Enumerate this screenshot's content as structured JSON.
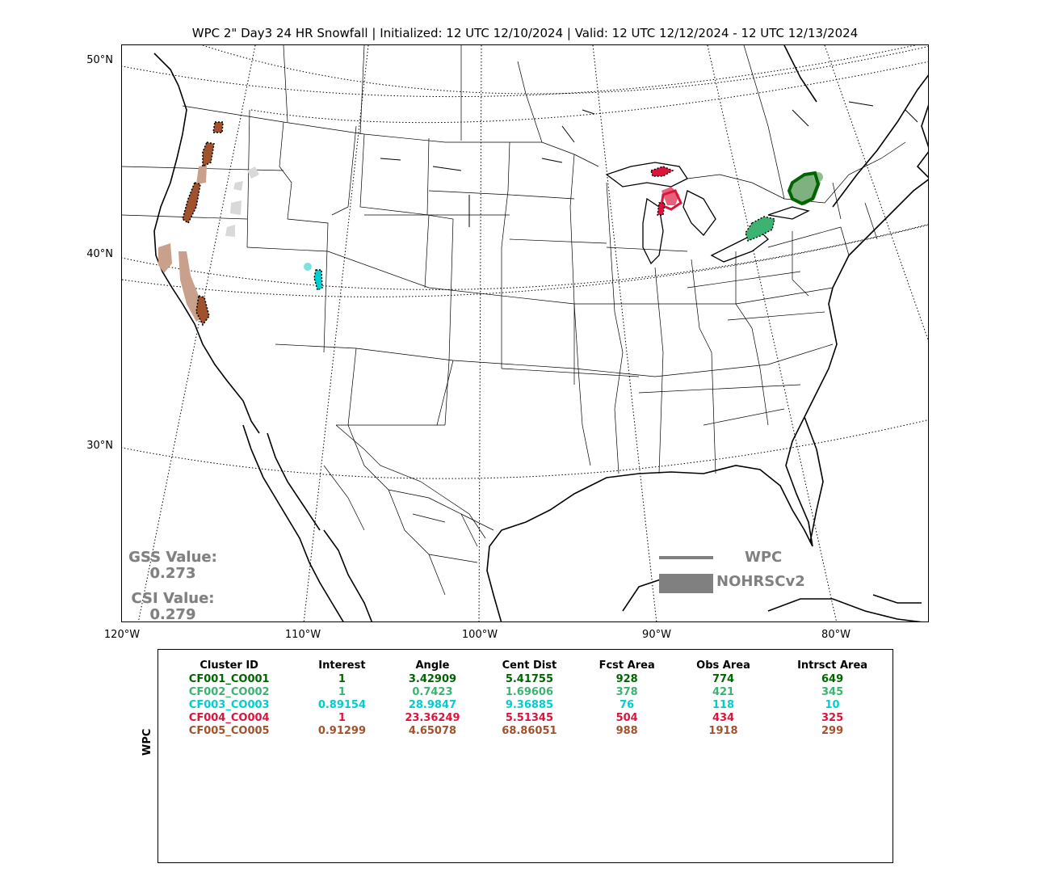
{
  "title": "WPC 2\" Day3 24 HR Snowfall | Initialized: 12 UTC 12/10/2024 | Valid: 12 UTC 12/12/2024 - 12 UTC 12/13/2024",
  "axes": {
    "lat_labels": [
      "50°N",
      "40°N",
      "30°N"
    ],
    "lon_labels": [
      "120°W",
      "110°W",
      "100°W",
      "90°W",
      "80°W"
    ]
  },
  "scores": {
    "gss_label": "GSS Value:",
    "gss_value": "0.273",
    "csi_label": "CSI Value:",
    "csi_value": "0.279"
  },
  "legend": {
    "forecast_label": "WPC",
    "observed_label": "NOHRSCv2",
    "color": "#808080"
  },
  "table": {
    "ylabel": "WPC",
    "headers": [
      "Cluster ID",
      "Interest",
      "Angle",
      "Cent Dist",
      "Fcst Area",
      "Obs Area",
      "Intrsct Area"
    ],
    "rows": [
      {
        "color": "#006400",
        "cells": [
          "CF001_CO001",
          "1",
          "3.42909",
          "5.41755",
          "928",
          "774",
          "649"
        ]
      },
      {
        "color": "#3cb371",
        "cells": [
          "CF002_CO002",
          "1",
          "0.7423",
          "1.69606",
          "378",
          "421",
          "345"
        ]
      },
      {
        "color": "#00ced1",
        "cells": [
          "CF003_CO003",
          "0.89154",
          "28.9847",
          "9.36885",
          "76",
          "118",
          "10"
        ]
      },
      {
        "color": "#dc143c",
        "cells": [
          "CF004_CO004",
          "1",
          "23.36249",
          "5.51345",
          "504",
          "434",
          "325"
        ]
      },
      {
        "color": "#a0522d",
        "cells": [
          "CF005_CO005",
          "0.91299",
          "4.65078",
          "68.86051",
          "988",
          "1918",
          "299"
        ]
      }
    ]
  },
  "clusters_colors": {
    "CF001": "#006400",
    "CF002": "#3cb371",
    "CF003": "#00ced1",
    "CF004": "#dc143c",
    "CF005": "#a0522d",
    "unmatched": "#d3d3d3"
  }
}
